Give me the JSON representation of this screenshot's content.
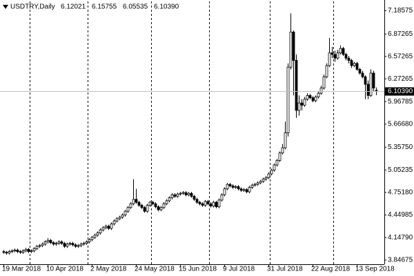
{
  "chart_data": {
    "type": "candlestick",
    "symbol": "USDTRY,Daily",
    "ohlc_labels": [
      "6.12021",
      "6.15755",
      "6.05535",
      "6.10390"
    ],
    "price_label": {
      "value": 6.1039,
      "label": "6.10390"
    },
    "up_color": "#ffffff",
    "down_color": "#000000",
    "wick_color": "#000000",
    "ylim": [
      3.79,
      7.31
    ],
    "yticks": [
      7.18575,
      6.87265,
      6.57265,
      6.27265,
      5.96785,
      {
        "value": 5.6668,
        "label": "5.66680"
      },
      {
        "value": 5.3575,
        "label": "5.35750"
      },
      5.05235,
      {
        "value": 4.7518,
        "label": "4.75180"
      },
      4.44985,
      {
        "value": 4.1479,
        "label": "4.14790"
      },
      3.84675
    ],
    "categories": [
      "19 Mar 2018",
      null,
      null,
      null,
      null,
      null,
      null,
      null,
      null,
      null,
      null,
      null,
      null,
      null,
      null,
      null,
      "10 Apr 2018",
      null,
      null,
      null,
      null,
      null,
      null,
      null,
      null,
      null,
      null,
      null,
      null,
      null,
      null,
      null,
      "2 May 2018",
      null,
      null,
      null,
      null,
      null,
      null,
      null,
      null,
      null,
      null,
      null,
      null,
      null,
      null,
      null,
      "24 May 2018",
      null,
      null,
      null,
      null,
      null,
      null,
      null,
      null,
      null,
      null,
      null,
      null,
      null,
      null,
      null,
      "15 Jun 2018",
      null,
      null,
      null,
      null,
      null,
      null,
      null,
      null,
      null,
      null,
      null,
      null,
      null,
      null,
      null,
      "9 Jul 2018",
      null,
      null,
      null,
      null,
      null,
      null,
      null,
      null,
      null,
      null,
      null,
      null,
      null,
      null,
      null,
      "31 Jul 2018",
      null,
      null,
      null,
      null,
      null,
      null,
      null,
      null,
      null,
      null,
      null,
      null,
      null,
      null,
      null,
      "22 Aug 2018",
      null,
      null,
      null,
      null,
      null,
      null,
      null,
      null,
      null,
      null,
      null,
      null,
      null,
      null,
      null,
      "13 Sep 2018",
      null,
      null,
      null,
      null,
      null,
      null,
      null
    ],
    "candles": [
      [
        3.96,
        3.98,
        3.93,
        3.95
      ],
      [
        3.95,
        3.97,
        3.92,
        3.94
      ],
      [
        3.94,
        3.98,
        3.92,
        3.96
      ],
      [
        3.96,
        3.99,
        3.94,
        3.97
      ],
      [
        3.97,
        4.0,
        3.95,
        3.98
      ],
      [
        3.98,
        4.0,
        3.94,
        3.96
      ],
      [
        3.96,
        3.98,
        3.93,
        3.95
      ],
      [
        3.95,
        3.99,
        3.93,
        3.97
      ],
      [
        3.97,
        4.01,
        3.95,
        3.99
      ],
      [
        3.99,
        4.01,
        3.94,
        3.96
      ],
      [
        3.96,
        3.99,
        3.94,
        3.97
      ],
      [
        3.97,
        4.02,
        3.95,
        4.0
      ],
      [
        4.0,
        4.05,
        3.98,
        4.03
      ],
      [
        4.03,
        4.06,
        4.01,
        4.04
      ],
      [
        4.04,
        4.08,
        4.02,
        4.06
      ],
      [
        4.06,
        4.11,
        4.04,
        4.09
      ],
      [
        4.09,
        4.14,
        4.07,
        4.11
      ],
      [
        4.11,
        4.13,
        4.06,
        4.08
      ],
      [
        4.08,
        4.1,
        4.04,
        4.06
      ],
      [
        4.06,
        4.09,
        4.04,
        4.07
      ],
      [
        4.07,
        4.11,
        4.05,
        4.09
      ],
      [
        4.09,
        4.11,
        4.05,
        4.07
      ],
      [
        4.07,
        4.09,
        4.01,
        4.03
      ],
      [
        4.03,
        4.08,
        4.01,
        4.06
      ],
      [
        4.06,
        4.09,
        4.04,
        4.07
      ],
      [
        4.07,
        4.09,
        4.03,
        4.05
      ],
      [
        4.05,
        4.07,
        4.01,
        4.03
      ],
      [
        4.03,
        4.06,
        4.01,
        4.04
      ],
      [
        4.04,
        4.08,
        4.02,
        4.06
      ],
      [
        4.06,
        4.09,
        4.04,
        4.07
      ],
      [
        4.07,
        4.11,
        4.05,
        4.09
      ],
      [
        4.09,
        4.14,
        4.07,
        4.12
      ],
      [
        4.12,
        4.17,
        4.1,
        4.15
      ],
      [
        4.15,
        4.2,
        4.13,
        4.18
      ],
      [
        4.18,
        4.23,
        4.16,
        4.21
      ],
      [
        4.21,
        4.27,
        4.19,
        4.25
      ],
      [
        4.25,
        4.3,
        4.23,
        4.28
      ],
      [
        4.28,
        4.32,
        4.26,
        4.3
      ],
      [
        4.3,
        4.32,
        4.25,
        4.27
      ],
      [
        4.27,
        4.35,
        4.25,
        4.33
      ],
      [
        4.33,
        4.39,
        4.31,
        4.37
      ],
      [
        4.37,
        4.42,
        4.35,
        4.4
      ],
      [
        4.4,
        4.44,
        4.38,
        4.42
      ],
      [
        4.42,
        4.47,
        4.4,
        4.45
      ],
      [
        4.45,
        4.52,
        4.43,
        4.5
      ],
      [
        4.5,
        4.57,
        4.48,
        4.55
      ],
      [
        4.55,
        4.62,
        4.53,
        4.6
      ],
      [
        4.6,
        4.93,
        4.58,
        4.66
      ],
      [
        4.66,
        4.8,
        4.6,
        4.62
      ],
      [
        4.62,
        4.64,
        4.56,
        4.58
      ],
      [
        4.58,
        4.6,
        4.53,
        4.55
      ],
      [
        4.55,
        4.57,
        4.48,
        4.5
      ],
      [
        4.5,
        4.6,
        4.48,
        4.58
      ],
      [
        4.58,
        4.64,
        4.56,
        4.62
      ],
      [
        4.62,
        4.64,
        4.58,
        4.6
      ],
      [
        4.6,
        4.62,
        4.54,
        4.56
      ],
      [
        4.56,
        4.58,
        4.5,
        4.52
      ],
      [
        4.52,
        4.57,
        4.5,
        4.55
      ],
      [
        4.55,
        4.62,
        4.53,
        4.6
      ],
      [
        4.6,
        4.66,
        4.58,
        4.64
      ],
      [
        4.64,
        4.7,
        4.62,
        4.68
      ],
      [
        4.68,
        4.74,
        4.66,
        4.72
      ],
      [
        4.72,
        4.74,
        4.68,
        4.7
      ],
      [
        4.7,
        4.75,
        4.68,
        4.73
      ],
      [
        4.73,
        4.76,
        4.71,
        4.74
      ],
      [
        4.74,
        4.77,
        4.72,
        4.75
      ],
      [
        4.75,
        4.77,
        4.7,
        4.72
      ],
      [
        4.72,
        4.76,
        4.7,
        4.74
      ],
      [
        4.74,
        4.76,
        4.68,
        4.7
      ],
      [
        4.7,
        4.72,
        4.64,
        4.66
      ],
      [
        4.66,
        4.68,
        4.6,
        4.62
      ],
      [
        4.62,
        4.64,
        4.58,
        4.6
      ],
      [
        4.6,
        4.62,
        4.56,
        4.58
      ],
      [
        4.58,
        4.65,
        4.56,
        4.63
      ],
      [
        4.63,
        4.65,
        4.58,
        4.6
      ],
      [
        4.6,
        4.62,
        4.55,
        4.57
      ],
      [
        4.57,
        4.64,
        4.55,
        4.62
      ],
      [
        4.62,
        4.64,
        4.54,
        4.56
      ],
      [
        4.56,
        4.67,
        4.54,
        4.65
      ],
      [
        4.65,
        4.74,
        4.63,
        4.72
      ],
      [
        4.72,
        4.82,
        4.7,
        4.8
      ],
      [
        4.8,
        4.88,
        4.78,
        4.86
      ],
      [
        4.86,
        4.88,
        4.82,
        4.84
      ],
      [
        4.84,
        4.86,
        4.8,
        4.82
      ],
      [
        4.82,
        4.85,
        4.8,
        4.83
      ],
      [
        4.83,
        4.85,
        4.78,
        4.8
      ],
      [
        4.8,
        4.82,
        4.76,
        4.78
      ],
      [
        4.78,
        4.81,
        4.76,
        4.79
      ],
      [
        4.79,
        4.81,
        4.74,
        4.76
      ],
      [
        4.76,
        4.84,
        4.74,
        4.82
      ],
      [
        4.82,
        4.87,
        4.8,
        4.85
      ],
      [
        4.85,
        4.88,
        4.83,
        4.86
      ],
      [
        4.86,
        4.9,
        4.84,
        4.88
      ],
      [
        4.88,
        4.92,
        4.86,
        4.9
      ],
      [
        4.9,
        4.95,
        4.88,
        4.93
      ],
      [
        4.93,
        4.97,
        4.91,
        4.95
      ],
      [
        4.95,
        5.02,
        4.93,
        5.0
      ],
      [
        5.0,
        5.07,
        4.98,
        5.05
      ],
      [
        5.05,
        5.14,
        5.03,
        5.12
      ],
      [
        5.12,
        5.2,
        5.1,
        5.18
      ],
      [
        5.18,
        5.3,
        5.16,
        5.28
      ],
      [
        5.28,
        5.4,
        5.26,
        5.35
      ],
      [
        5.35,
        5.7,
        5.33,
        5.55
      ],
      [
        5.55,
        6.48,
        5.5,
        6.43
      ],
      [
        6.43,
        7.15,
        6.4,
        6.9
      ],
      [
        6.9,
        6.92,
        6.05,
        6.52
      ],
      [
        6.52,
        6.6,
        5.75,
        5.85
      ],
      [
        5.85,
        6.05,
        5.78,
        5.95
      ],
      [
        5.95,
        6.0,
        5.85,
        5.92
      ],
      [
        5.92,
        6.03,
        5.9,
        6.0
      ],
      [
        6.0,
        6.08,
        5.98,
        6.05
      ],
      [
        6.05,
        6.07,
        6.0,
        6.02
      ],
      [
        6.02,
        6.04,
        5.96,
        5.98
      ],
      [
        5.98,
        6.05,
        5.96,
        6.03
      ],
      [
        6.03,
        6.1,
        6.01,
        6.08
      ],
      [
        6.08,
        6.18,
        6.06,
        6.15
      ],
      [
        6.15,
        6.33,
        6.13,
        6.3
      ],
      [
        6.3,
        6.48,
        6.28,
        6.45
      ],
      [
        6.45,
        6.82,
        6.43,
        6.62
      ],
      [
        6.62,
        6.7,
        6.55,
        6.6
      ],
      [
        6.6,
        6.65,
        6.5,
        6.55
      ],
      [
        6.55,
        6.66,
        6.53,
        6.62
      ],
      [
        6.62,
        6.72,
        6.6,
        6.68
      ],
      [
        6.68,
        6.7,
        6.58,
        6.6
      ],
      [
        6.6,
        6.62,
        6.52,
        6.55
      ],
      [
        6.55,
        6.58,
        6.48,
        6.52
      ],
      [
        6.52,
        6.54,
        6.42,
        6.45
      ],
      [
        6.45,
        6.5,
        6.43,
        6.48
      ],
      [
        6.48,
        6.5,
        6.38,
        6.4
      ],
      [
        6.4,
        6.42,
        6.33,
        6.35
      ],
      [
        6.35,
        6.38,
        6.28,
        6.3
      ],
      [
        6.3,
        6.32,
        6.0,
        6.2
      ],
      [
        6.2,
        6.25,
        6.0,
        6.05
      ],
      [
        6.05,
        6.4,
        6.03,
        6.35
      ],
      [
        6.35,
        6.38,
        6.1,
        6.15
      ],
      [
        6.12021,
        6.15755,
        6.05535,
        6.1039
      ]
    ]
  }
}
